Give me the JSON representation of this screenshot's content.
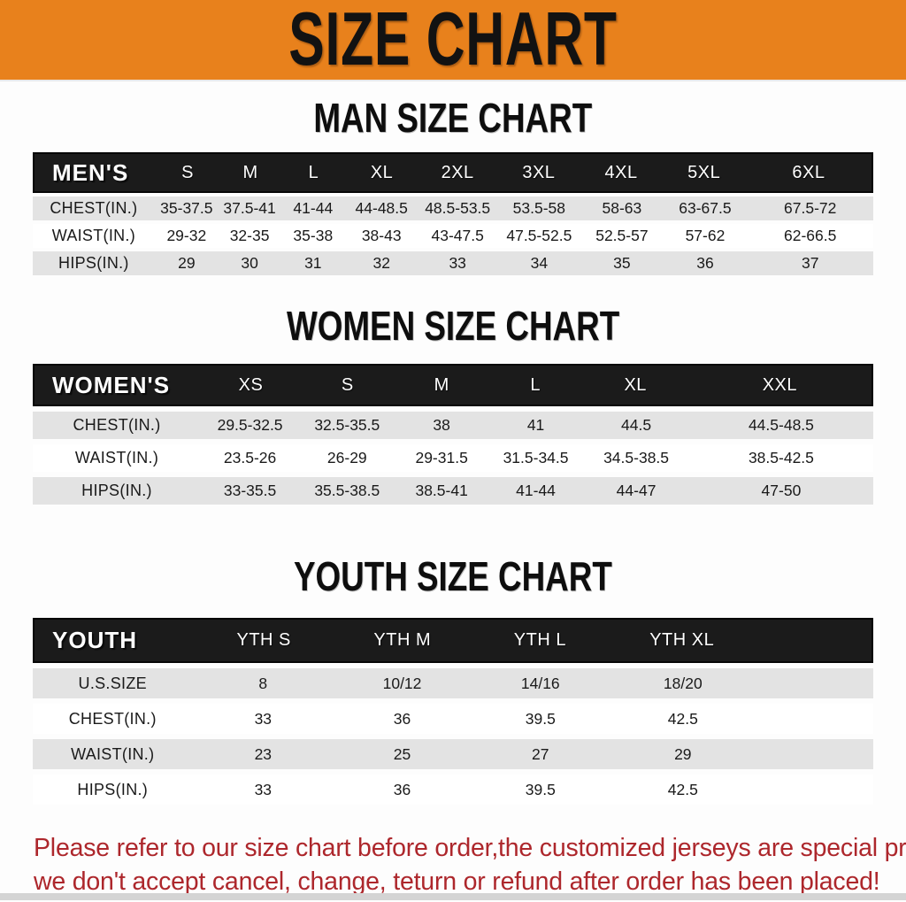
{
  "banner": {
    "title": "SIZE CHART"
  },
  "colors": {
    "banner_bg": "#E8811C",
    "band_bg": "#1b1b1b",
    "row_gray": "#E3E3E3",
    "footer_red": "#AD272C"
  },
  "sections": [
    {
      "id": "men",
      "title": "MAN SIZE CHART",
      "band_label": "MEN'S",
      "columns": [
        "S",
        "M",
        "L",
        "XL",
        "2XL",
        "3XL",
        "4XL",
        "5XL",
        "6XL"
      ],
      "rows": [
        {
          "label": "CHEST(IN.)",
          "values": [
            "35-37.5",
            "37.5-41",
            "41-44",
            "44-48.5",
            "48.5-53.5",
            "53.5-58",
            "58-63",
            "63-67.5",
            "67.5-72"
          ]
        },
        {
          "label": "WAIST(IN.)",
          "values": [
            "29-32",
            "32-35",
            "35-38",
            "38-43",
            "43-47.5",
            "47.5-52.5",
            "52.5-57",
            "57-62",
            "62-66.5"
          ]
        },
        {
          "label": "HIPS(IN.)",
          "values": [
            "29",
            "30",
            "31",
            "32",
            "33",
            "34",
            "35",
            "36",
            "37"
          ]
        }
      ]
    },
    {
      "id": "women",
      "title": "WOMEN SIZE CHART",
      "band_label": "WOMEN'S",
      "columns": [
        "XS",
        "S",
        "M",
        "L",
        "XL",
        "XXL"
      ],
      "rows": [
        {
          "label": "CHEST(IN.)",
          "values": [
            "29.5-32.5",
            "32.5-35.5",
            "38",
            "41",
            "44.5",
            "44.5-48.5"
          ]
        },
        {
          "label": "WAIST(IN.)",
          "values": [
            "23.5-26",
            "26-29",
            "29-31.5",
            "31.5-34.5",
            "34.5-38.5",
            "38.5-42.5"
          ]
        },
        {
          "label": "HIPS(IN.)",
          "values": [
            "33-35.5",
            "35.5-38.5",
            "38.5-41",
            "41-44",
            "44-47",
            "47-50"
          ]
        }
      ]
    },
    {
      "id": "youth",
      "title": "YOUTH SIZE CHART",
      "band_label": "YOUTH",
      "columns": [
        "YTH S",
        "YTH M",
        "YTH L",
        "YTH XL"
      ],
      "rows": [
        {
          "label": "U.S.SIZE",
          "values": [
            "8",
            "10/12",
            "14/16",
            "18/20"
          ]
        },
        {
          "label": "CHEST(IN.)",
          "values": [
            "33",
            "36",
            "39.5",
            "42.5"
          ]
        },
        {
          "label": "WAIST(IN.)",
          "values": [
            "23",
            "25",
            "27",
            "29"
          ]
        },
        {
          "label": "HIPS(IN.)",
          "values": [
            "33",
            "36",
            "39.5",
            "42.5"
          ]
        }
      ]
    }
  ],
  "footer": {
    "line1": "Please refer to our size chart before order,the customized jerseys are special products,",
    "line2": "we don't accept cancel, change, teturn or refund after order has been placed!"
  }
}
